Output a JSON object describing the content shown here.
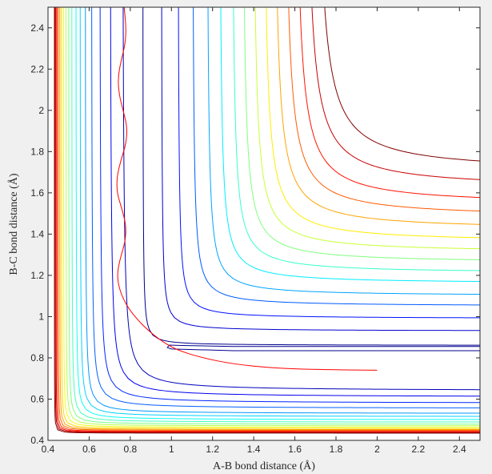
{
  "chart_data": {
    "type": "contour",
    "title": "",
    "xlabel": "A-B bond distance (Å)",
    "ylabel": "B-C bond distance (Å)",
    "xlim": [
      0.4,
      2.5
    ],
    "ylim": [
      0.4,
      2.5
    ],
    "xticks": [
      0.4,
      0.6,
      0.8,
      1,
      1.2,
      1.4,
      1.6,
      1.8,
      2,
      2.2,
      2.4
    ],
    "yticks": [
      0.4,
      0.6,
      0.8,
      1,
      1.2,
      1.4,
      1.6,
      1.8,
      2,
      2.2,
      2.4
    ],
    "xtick_labels": [
      "0.4",
      "0.6",
      "0.8",
      "1",
      "1.2",
      "1.4",
      "1.6",
      "1.8",
      "2",
      "2.2",
      "2.4"
    ],
    "ytick_labels": [
      "0.4",
      "0.6",
      "0.8",
      "1",
      "1.2",
      "1.4",
      "1.6",
      "1.8",
      "2",
      "2.2",
      "2.4"
    ],
    "colormap": [
      "#00008f",
      "#0000ff",
      "#0080ff",
      "#00ffff",
      "#80ff80",
      "#ffff00",
      "#ff8000",
      "#ff0000",
      "#800000"
    ],
    "contours": {
      "upper_family": {
        "asymptote_x": [
          0.86,
          0.95,
          1.03,
          1.1,
          1.17,
          1.23,
          1.29,
          1.34,
          1.39,
          1.44,
          1.49,
          1.54,
          1.59,
          1.64,
          1.69
        ],
        "asymptote_y": [
          0.86,
          0.93,
          0.99,
          1.05,
          1.1,
          1.16,
          1.21,
          1.26,
          1.31,
          1.36,
          1.42,
          1.48,
          1.54,
          1.62,
          1.7
        ],
        "corner_radius": [
          0.1,
          0.13,
          0.16,
          0.19,
          0.21,
          0.23,
          0.25,
          0.27,
          0.29,
          0.31,
          0.33,
          0.35,
          0.37,
          0.39,
          0.42
        ]
      },
      "lower_family": {
        "asymptote_x": [
          0.76,
          0.7,
          0.65,
          0.61,
          0.58,
          0.555,
          0.535,
          0.515,
          0.5,
          0.487,
          0.475,
          0.465,
          0.457,
          0.45,
          0.444,
          0.439,
          0.435,
          0.431
        ],
        "asymptote_y": [
          0.64,
          0.61,
          0.58,
          0.555,
          0.53,
          0.515,
          0.5,
          0.488,
          0.478,
          0.47,
          0.463,
          0.457,
          0.452,
          0.448,
          0.444,
          0.441,
          0.438,
          0.435
        ],
        "corner_radius": [
          0.2,
          0.18,
          0.16,
          0.14,
          0.12,
          0.11,
          0.1,
          0.09,
          0.08,
          0.072,
          0.065,
          0.058,
          0.052,
          0.047,
          0.042,
          0.038,
          0.035,
          0.032
        ]
      },
      "well_contour": [
        [
          2.5,
          0.855
        ],
        [
          1.3,
          0.855
        ],
        [
          1.05,
          0.86
        ],
        [
          0.99,
          0.862
        ],
        [
          0.98,
          0.85
        ],
        [
          1.0,
          0.843
        ],
        [
          1.3,
          0.835
        ],
        [
          2.5,
          0.835
        ]
      ]
    },
    "trajectory": {
      "color": "#ff0000",
      "points": [
        [
          2.0,
          0.74
        ],
        [
          1.75,
          0.742
        ],
        [
          1.5,
          0.75
        ],
        [
          1.3,
          0.77
        ],
        [
          1.15,
          0.8
        ],
        [
          1.02,
          0.84
        ],
        [
          0.94,
          0.89
        ],
        [
          0.88,
          0.94
        ],
        [
          0.84,
          0.98
        ],
        [
          0.79,
          1.04
        ],
        [
          0.75,
          1.12
        ],
        [
          0.735,
          1.2
        ],
        [
          0.75,
          1.28
        ],
        [
          0.775,
          1.36
        ],
        [
          0.78,
          1.44
        ],
        [
          0.76,
          1.52
        ],
        [
          0.735,
          1.6
        ],
        [
          0.735,
          1.68
        ],
        [
          0.755,
          1.76
        ],
        [
          0.78,
          1.84
        ],
        [
          0.785,
          1.92
        ],
        [
          0.765,
          2.0
        ],
        [
          0.745,
          2.08
        ],
        [
          0.74,
          2.16
        ],
        [
          0.755,
          2.24
        ],
        [
          0.775,
          2.32
        ],
        [
          0.78,
          2.4
        ],
        [
          0.77,
          2.5
        ]
      ]
    }
  }
}
